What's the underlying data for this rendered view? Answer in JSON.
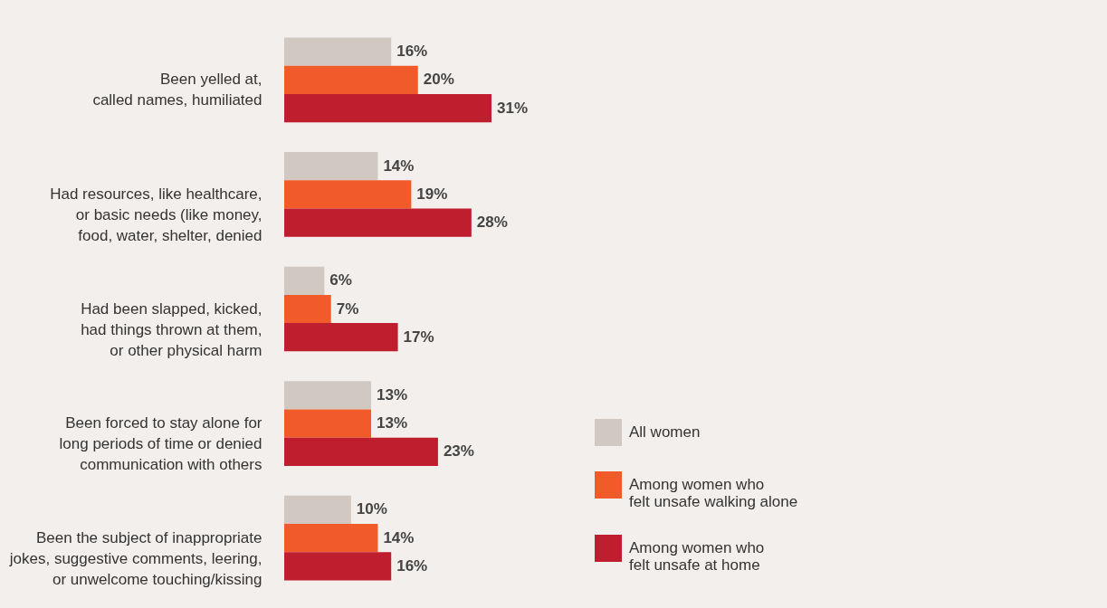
{
  "chart_data": {
    "type": "bar",
    "orientation": "horizontal",
    "tick_labels": "y",
    "legend": "bottom right",
    "categories": [
      "Been yelled at,\ncalled names, humiliated",
      "Had resources, like healthcare,\nor basic needs (like money,\nfood, water, shelter, denied",
      "Had been slapped, kicked,\nhad things thrown at them,\nor other physical harm",
      "Been forced to stay alone for\nlong periods of time or denied\ncommunication with others",
      "Been the subject of inappropriate\njokes, suggestive comments, leering,\nor unwelcome touching/kissing"
    ],
    "series": [
      {
        "name": "All women",
        "color": "#d1c8c2",
        "values": [
          16,
          14,
          6,
          13,
          10
        ],
        "value_labels": [
          "16%",
          "14%",
          "6%",
          "13%",
          "10%"
        ]
      },
      {
        "name": "Among women who\nfelt unsafe walking alone",
        "color": "#f15a29",
        "values": [
          20,
          19,
          7,
          13,
          14
        ],
        "value_labels": [
          "20%",
          "19%",
          "7%",
          "13%",
          "14%"
        ]
      },
      {
        "name": "Among women who\nfelt unsafe at home",
        "color": "#be1e2d",
        "values": [
          31,
          28,
          17,
          23,
          16
        ],
        "value_labels": [
          "31%",
          "28%",
          "17%",
          "23%",
          "16%"
        ]
      }
    ]
  }
}
